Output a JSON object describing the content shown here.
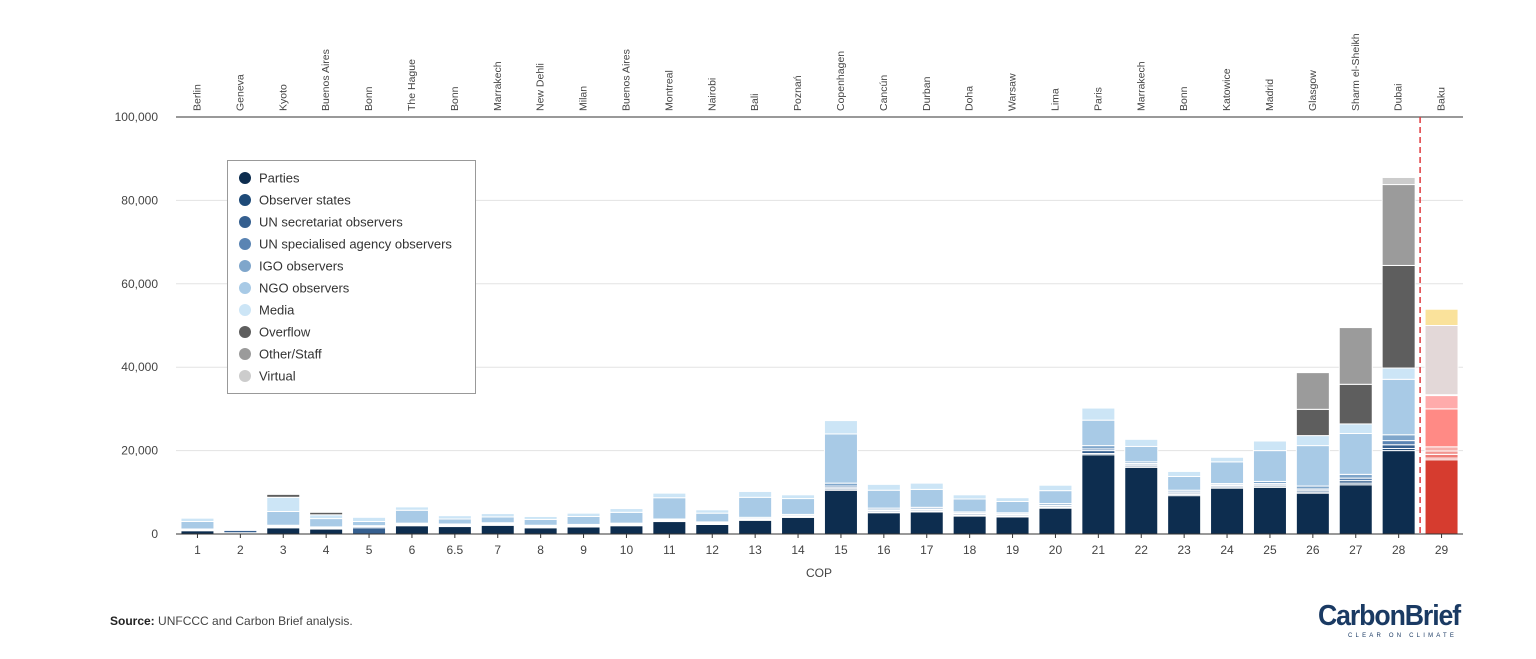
{
  "chart_data": {
    "type": "bar",
    "stacked": true,
    "xlabel": "COP",
    "ylabel": "",
    "ylim": [
      0,
      100000
    ],
    "yticks": [
      0,
      20000,
      40000,
      60000,
      80000,
      100000
    ],
    "ytick_labels": [
      "0",
      "20,000",
      "40,000",
      "60,000",
      "80,000",
      "100,000"
    ],
    "grid": true,
    "legend_position": "top-left",
    "categories": [
      "1",
      "2",
      "3",
      "4",
      "5",
      "6",
      "6.5",
      "7",
      "8",
      "9",
      "10",
      "11",
      "12",
      "13",
      "14",
      "15",
      "16",
      "17",
      "18",
      "19",
      "20",
      "21",
      "22",
      "23",
      "24",
      "25",
      "26",
      "27",
      "28",
      "29"
    ],
    "locations": [
      "Berlin",
      "Geneva",
      "Kyoto",
      "Buenos Aires",
      "Bonn",
      "The Hague",
      "Bonn",
      "Marrakech",
      "New Dehli",
      "Milan",
      "Buenos Aires",
      "Montreal",
      "Nairobi",
      "Bali",
      "Poznań",
      "Copenhagen",
      "Cancún",
      "Durban",
      "Doha",
      "Warsaw",
      "Lima",
      "Paris",
      "Marrakech",
      "Bonn",
      "Katowice",
      "Madrid",
      "Glasgow",
      "Sharm el-Sheikh",
      "Dubai",
      "Baku"
    ],
    "series": [
      {
        "name": "Parties",
        "color": "#0d2d4f",
        "values": [
          800,
          200,
          1500,
          1200,
          0,
          2000,
          1800,
          2100,
          1500,
          1700,
          2000,
          3000,
          2300,
          3300,
          4000,
          10500,
          5100,
          5300,
          4300,
          4100,
          6200,
          19000,
          16000,
          9200,
          11000,
          11200,
          9800,
          11800,
          20000,
          17800
        ]
      },
      {
        "name": "Observer states",
        "color": "#1e4a78",
        "values": [
          100,
          100,
          100,
          100,
          0,
          100,
          100,
          100,
          100,
          100,
          100,
          100,
          100,
          100,
          100,
          300,
          200,
          200,
          200,
          200,
          200,
          300,
          300,
          300,
          300,
          300,
          300,
          400,
          500,
          400
        ]
      },
      {
        "name": "UN secretariat observers",
        "color": "#355f8f",
        "values": [
          100,
          600,
          200,
          200,
          1500,
          200,
          200,
          200,
          200,
          200,
          200,
          200,
          200,
          200,
          200,
          300,
          300,
          300,
          300,
          300,
          300,
          700,
          300,
          300,
          300,
          300,
          400,
          600,
          900,
          900
        ]
      },
      {
        "name": "UN specialised agency observers",
        "color": "#5a84b3",
        "values": [
          100,
          100,
          100,
          100,
          300,
          100,
          100,
          100,
          100,
          100,
          100,
          100,
          100,
          100,
          100,
          400,
          200,
          200,
          200,
          200,
          200,
          400,
          300,
          300,
          200,
          300,
          300,
          600,
          1000,
          800
        ]
      },
      {
        "name": "IGO observers",
        "color": "#7fa6cb",
        "values": [
          100,
          100,
          200,
          100,
          200,
          200,
          200,
          200,
          200,
          200,
          200,
          200,
          200,
          300,
          300,
          700,
          400,
          400,
          300,
          300,
          400,
          800,
          400,
          400,
          300,
          500,
          700,
          900,
          1400,
          1000
        ]
      },
      {
        "name": "NGO observers",
        "color": "#a8cae6",
        "values": [
          1800,
          0,
          3300,
          2000,
          1000,
          3100,
          1200,
          1400,
          1400,
          1900,
          2600,
          5100,
          2100,
          4800,
          3800,
          11800,
          4300,
          4300,
          3100,
          2700,
          3100,
          6100,
          3700,
          3300,
          5200,
          7400,
          9700,
          9800,
          13300,
          9100
        ]
      },
      {
        "name": "Media",
        "color": "#cce5f6",
        "values": [
          800,
          0,
          3400,
          900,
          1000,
          800,
          800,
          800,
          700,
          800,
          900,
          1100,
          800,
          1400,
          900,
          3200,
          1400,
          1500,
          1000,
          900,
          1300,
          2900,
          1700,
          1200,
          1100,
          2300,
          2400,
          2300,
          2700,
          3200
        ]
      },
      {
        "name": "Overflow",
        "color": "#5e5e5e",
        "values": [
          0,
          0,
          700,
          600,
          0,
          0,
          0,
          0,
          0,
          0,
          0,
          0,
          0,
          0,
          0,
          0,
          0,
          0,
          0,
          0,
          0,
          0,
          0,
          0,
          0,
          0,
          6300,
          9500,
          24600,
          200
        ]
      },
      {
        "name": "Other/Staff",
        "color": "#9b9b9b",
        "values": [
          0,
          0,
          0,
          0,
          0,
          0,
          0,
          0,
          0,
          0,
          0,
          0,
          0,
          0,
          0,
          0,
          0,
          0,
          0,
          0,
          0,
          0,
          0,
          0,
          0,
          0,
          8800,
          13600,
          19400,
          16600
        ]
      },
      {
        "name": "Virtual",
        "color": "#cccccc",
        "values": [
          0,
          0,
          0,
          0,
          0,
          0,
          0,
          0,
          0,
          0,
          0,
          0,
          0,
          0,
          0,
          0,
          0,
          0,
          0,
          0,
          0,
          0,
          0,
          0,
          0,
          0,
          0,
          0,
          1700,
          3900
        ]
      }
    ],
    "provisional_colors": [
      "#d63c2f",
      "#e8625a",
      "#ee7c76",
      "#f29590",
      "#f6aeaa",
      "#ff8a85",
      "#ffabab",
      "#ffd7d5",
      "#e3d8d8",
      "#fae29b"
    ]
  },
  "footer": {
    "source_label": "Source:",
    "source_text": "UNFCCC and Carbon Brief analysis."
  },
  "brand": {
    "name": "CarbonBrief",
    "tagline": "CLEAR ON CLIMATE"
  }
}
